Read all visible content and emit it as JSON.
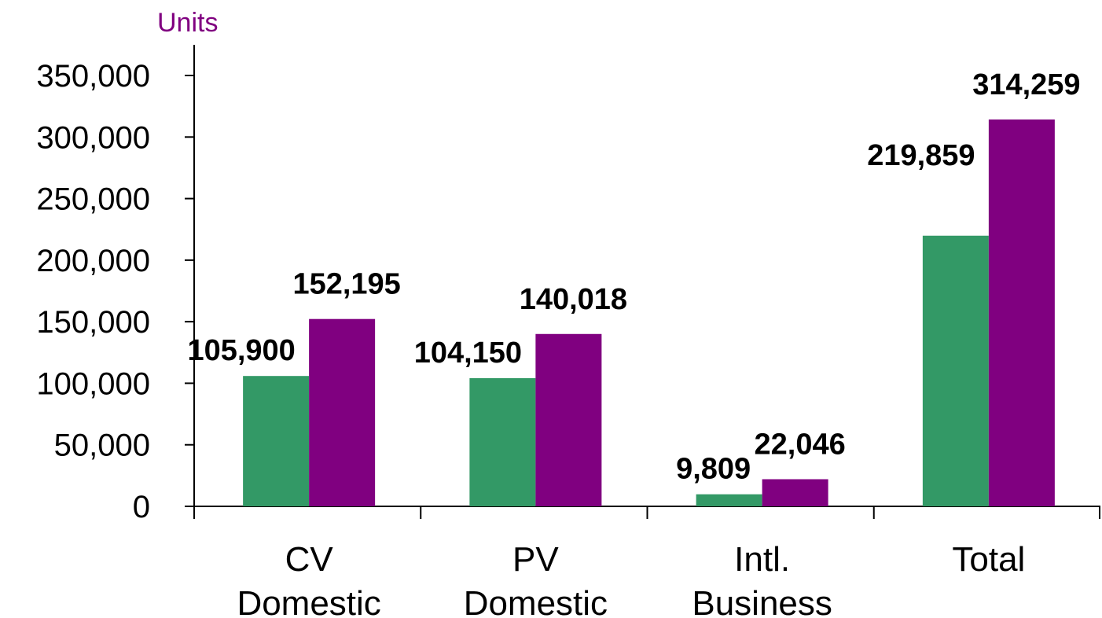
{
  "chart_data": {
    "type": "bar",
    "title": "",
    "ylabel": "Units",
    "xlabel": "",
    "ylim": [
      0,
      350000
    ],
    "yticks": [
      0,
      50000,
      100000,
      150000,
      200000,
      250000,
      300000,
      350000
    ],
    "ytick_labels": [
      "0",
      "50,000",
      "100,000",
      "150,000",
      "200,000",
      "250,000",
      "300,000",
      "350,000"
    ],
    "categories": [
      [
        "CV",
        "Domestic"
      ],
      [
        "PV",
        "Domestic"
      ],
      [
        "Intl.",
        "Business"
      ],
      [
        "Total",
        ""
      ]
    ],
    "series": [
      {
        "color": "#339966",
        "values": [
          105900,
          104150,
          9809,
          219859
        ],
        "labels": [
          "105,900",
          "104,150",
          "9,809",
          "219,859"
        ]
      },
      {
        "color": "#800080",
        "values": [
          152195,
          140018,
          22046,
          314259
        ],
        "labels": [
          "152,195",
          "140,018",
          "22,046",
          "314,259"
        ]
      }
    ],
    "grid": false,
    "legend": "none",
    "ylabel_color": "#800080"
  }
}
